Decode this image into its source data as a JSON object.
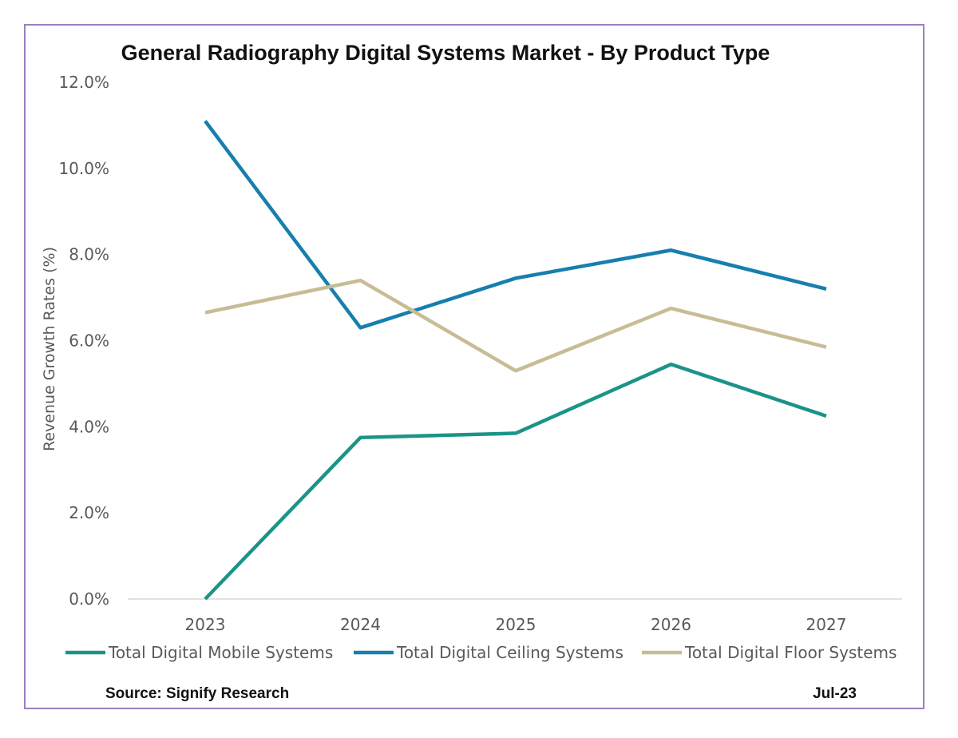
{
  "colors": {
    "border": "#9b7fbf",
    "mobile": "#1b9488",
    "ceiling": "#177fae",
    "floor": "#c8bc96",
    "axis": "#d9d9d9",
    "text": "#595959"
  },
  "footer": {
    "source": "Source: Signify Research",
    "date": "Jul-23"
  },
  "chart_data": {
    "type": "line",
    "title": "General Radiography Digital Systems Market - By Product Type",
    "xlabel": "",
    "ylabel": "Revenue Growth Rates (%)",
    "categories": [
      "2023",
      "2024",
      "2025",
      "2026",
      "2027"
    ],
    "ylim": [
      0,
      12
    ],
    "yticks": [
      "0.0%",
      "2.0%",
      "4.0%",
      "6.0%",
      "8.0%",
      "10.0%",
      "12.0%"
    ],
    "grid": false,
    "legend_position": "bottom",
    "series": [
      {
        "name": "Total Digital Mobile Systems",
        "color": "#1b9488",
        "values": [
          0.0,
          3.75,
          3.85,
          5.45,
          4.25
        ]
      },
      {
        "name": "Total Digital Ceiling Systems",
        "color": "#177fae",
        "values": [
          11.1,
          6.3,
          7.45,
          8.1,
          7.2
        ]
      },
      {
        "name": "Total Digital Floor Systems",
        "color": "#c8bc96",
        "values": [
          6.65,
          7.4,
          5.3,
          6.75,
          5.85
        ]
      }
    ]
  }
}
